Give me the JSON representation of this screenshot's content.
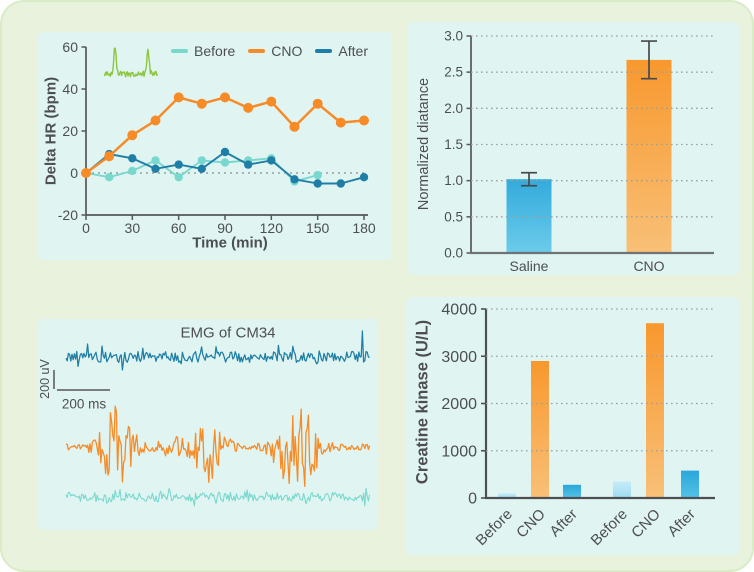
{
  "page": {
    "background": "#e8f2dd",
    "border_color": "#d9ecc6",
    "panel_background": "#e0f5f2",
    "text_color": "#4d4e52",
    "axis_color": "#55565a",
    "grid_color": "#9aa0a0"
  },
  "colors": {
    "before": "#79d8ce",
    "cno": "#f68b28",
    "after": "#1f7ea6",
    "green_trace": "#8dc63f",
    "saline_bar_top": "#33abdc",
    "saline_bar_bottom": "#6ccbea",
    "cno_bar_top": "#f8982e",
    "cno_bar_bottom": "#f8c077",
    "after_bar_top": "#2aa7d9",
    "after_bar_bottom": "#55c2e7",
    "pale_blue_bar_top": "#c6ecf8",
    "pale_blue_bar_bottom": "#9edcf0",
    "error_bar": "#47484c"
  },
  "chart_data": [
    {
      "id": "delta-hr-line",
      "type": "line",
      "xlabel": "Time (min)",
      "ylabel": "Delta HR (bpm)",
      "xlim": [
        0,
        180
      ],
      "ylim": [
        -20,
        60
      ],
      "xticks": [
        0,
        30,
        60,
        90,
        120,
        150,
        180
      ],
      "yticks": [
        -20,
        0,
        20,
        40,
        60
      ],
      "grid": false,
      "zero_reference_line": "dotted",
      "legend_position": "top-right",
      "legend_entries": [
        "Before",
        "CNO",
        "After"
      ],
      "series": [
        {
          "name": "Before",
          "color_key": "before",
          "x": [
            0,
            15,
            30,
            45,
            60,
            75,
            90,
            105,
            120,
            135,
            150
          ],
          "values": [
            0,
            -2,
            1,
            6,
            -2,
            6,
            5,
            6,
            7,
            -4,
            -1
          ]
        },
        {
          "name": "CNO",
          "color_key": "cno",
          "x": [
            0,
            15,
            30,
            45,
            60,
            75,
            90,
            105,
            120,
            135,
            150,
            165,
            180
          ],
          "values": [
            0,
            8,
            18,
            25,
            36,
            33,
            36,
            31,
            34,
            22,
            33,
            24,
            25
          ]
        },
        {
          "name": "After",
          "color_key": "after",
          "x": [
            0,
            15,
            30,
            45,
            60,
            75,
            90,
            105,
            120,
            135,
            150,
            165,
            180
          ],
          "values": [
            0,
            9,
            7,
            2,
            4,
            2,
            10,
            4,
            6,
            -3,
            -5,
            -5,
            -2
          ]
        }
      ],
      "inset": {
        "name": "ecg-spike-inset",
        "color_key": "green_trace",
        "description": "small green trace with two tall spikes"
      }
    },
    {
      "id": "normalized-distance-bar",
      "type": "bar",
      "ylabel": "Normalized diatance",
      "categories": [
        "Saline",
        "CNO"
      ],
      "values": [
        1.02,
        2.67
      ],
      "errors": [
        0.09,
        0.26
      ],
      "bar_color_keys": [
        "saline",
        "cno"
      ],
      "yticks": [
        0,
        0.5,
        1,
        1.5,
        2,
        2.5,
        3
      ],
      "ytick_labels": [
        "0.0",
        "0.5",
        "1.0",
        "1.5",
        "2.0",
        "2.5",
        "3.0"
      ],
      "ylim": [
        0,
        3
      ],
      "grid": "dotted-horizontal"
    },
    {
      "id": "emg-traces",
      "type": "line",
      "title": "EMG of CM34",
      "scalebar_vertical": "200 uV",
      "scalebar_horizontal": "200 ms",
      "traces": [
        {
          "name": "emg-top",
          "color_key": "after"
        },
        {
          "name": "emg-middle-bursting",
          "color_key": "cno"
        },
        {
          "name": "emg-bottom",
          "color_key": "before"
        }
      ]
    },
    {
      "id": "creatine-kinase-bar",
      "type": "bar",
      "ylabel": "Creatine kinase (U/L)",
      "categories": [
        "Before",
        "CNO",
        "After",
        "Before",
        "CNO",
        "After"
      ],
      "values": [
        100,
        2900,
        280,
        350,
        3700,
        580
      ],
      "bar_color_keys": [
        "pale_blue",
        "cno",
        "after",
        "pale_blue",
        "cno",
        "after"
      ],
      "yticks": [
        0,
        1000,
        2000,
        3000,
        4000
      ],
      "ylim": [
        0,
        4000
      ],
      "x_label_rotation": -45,
      "grid": "dotted-horizontal"
    }
  ]
}
